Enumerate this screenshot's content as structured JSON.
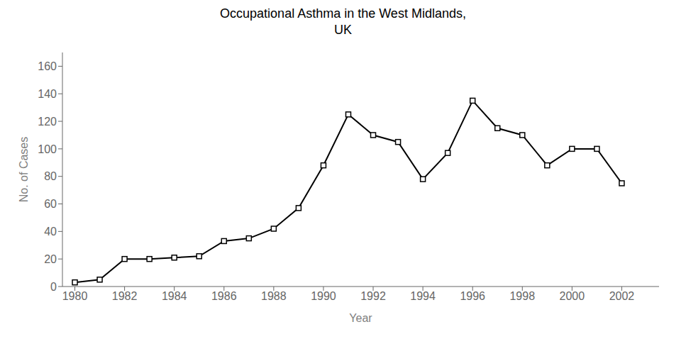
{
  "chart_data": {
    "type": "line",
    "title": "Occupational Asthma in the West Midlands,\nUK",
    "x_label": "Year",
    "y_label": "No. of Cases",
    "x": [
      1980,
      1981,
      1982,
      1983,
      1984,
      1985,
      1986,
      1987,
      1988,
      1989,
      1990,
      1991,
      1992,
      1993,
      1994,
      1995,
      1996,
      1997,
      1998,
      1999,
      2000,
      2001,
      2002
    ],
    "values": [
      3,
      5,
      20,
      20,
      21,
      22,
      33,
      35,
      42,
      57,
      88,
      125,
      110,
      105,
      78,
      97,
      135,
      115,
      110,
      88,
      100,
      100,
      75
    ],
    "xlim": [
      1979.5,
      2003.5
    ],
    "xticks": [
      1980,
      1982,
      1984,
      1986,
      1988,
      1990,
      1992,
      1994,
      1996,
      1998,
      2000,
      2002
    ],
    "ylim": [
      0,
      170
    ],
    "yticks": [
      0,
      20,
      40,
      60,
      80,
      100,
      120,
      140,
      160
    ],
    "color": "black",
    "marker": "square",
    "grid": false
  }
}
